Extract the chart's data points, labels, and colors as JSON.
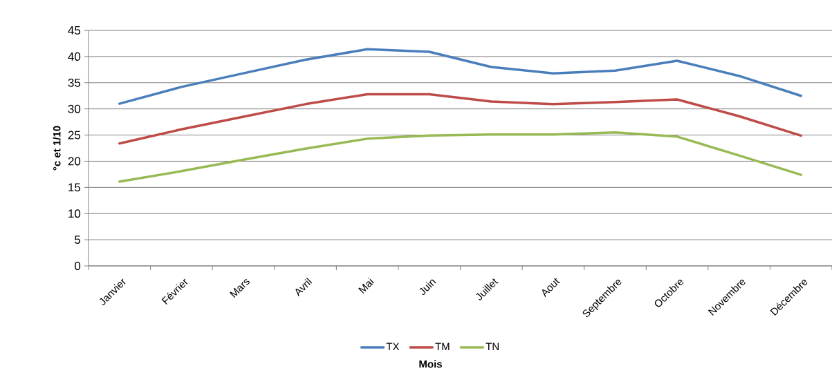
{
  "chart_data": {
    "type": "line",
    "xlabel": "Mois",
    "ylabel": "°c et 1/10",
    "categories": [
      "Janvier",
      "Février",
      "Mars",
      "Avril",
      "Mai",
      "Juin",
      "Juillet",
      "Aout",
      "Septembre",
      "Octobre",
      "Novembre",
      "Décembre"
    ],
    "series": [
      {
        "name": "TX",
        "color": "#4a7ebb",
        "values": [
          31.0,
          34.2,
          36.8,
          39.4,
          41.4,
          40.9,
          38.0,
          36.8,
          37.3,
          39.2,
          36.3,
          32.5
        ]
      },
      {
        "name": "TM",
        "color": "#be4b48",
        "values": [
          23.4,
          26.1,
          28.5,
          30.9,
          32.8,
          32.8,
          31.4,
          30.9,
          31.3,
          31.8,
          28.6,
          24.9
        ]
      },
      {
        "name": "TN",
        "color": "#98b954",
        "values": [
          16.1,
          18.1,
          20.3,
          22.4,
          24.3,
          24.9,
          25.1,
          25.1,
          25.5,
          24.7,
          21.1,
          17.4
        ]
      }
    ],
    "ylim": [
      0,
      45
    ],
    "yticks": [
      0,
      5,
      10,
      15,
      20,
      25,
      30,
      35,
      40,
      45
    ],
    "grid": "y",
    "legend": "bottom",
    "marker": "none",
    "line_style": "solid"
  }
}
